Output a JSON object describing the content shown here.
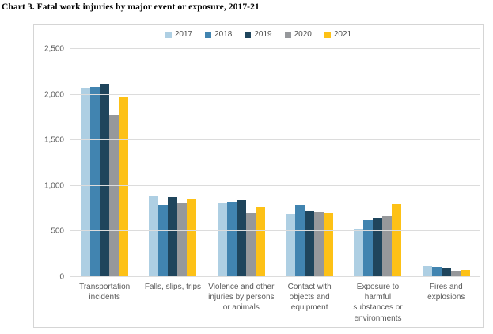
{
  "title": "Chart 3. Fatal work injuries by major event or exposure, 2017-21",
  "colors": {
    "frame_border": "#d5d5d5",
    "gridline": "#dcdcdc",
    "axis_text": "#595959",
    "legend_text": "#4d4d4d",
    "background": "#ffffff"
  },
  "chart_data": {
    "type": "bar",
    "title": "Chart 3. Fatal work injuries by major event or exposure, 2017-21",
    "categories": [
      "Transportation incidents",
      "Falls, slips, trips",
      "Violence and other injuries by persons or animals",
      "Contact with objects and equipment",
      "Exposure to harmful substances or environments",
      "Fires and explosions"
    ],
    "categories_wrapped": [
      "Transportation\nincidents",
      "Falls, slips, trips",
      "Violence and other\ninjuries by persons\nor animals",
      "Contact with\nobjects and\nequipment",
      "Exposure to\nharmful\nsubstances or\nenvironments",
      "Fires and\nexplosions"
    ],
    "series": [
      {
        "name": "2017",
        "color": "#aecfe3",
        "values": [
          2077,
          887,
          807,
          695,
          531,
          123
        ]
      },
      {
        "name": "2018",
        "color": "#4184b0",
        "values": [
          2080,
          791,
          828,
          786,
          621,
          115
        ]
      },
      {
        "name": "2019",
        "color": "#1f455c",
        "values": [
          2122,
          880,
          841,
          732,
          642,
          99
        ]
      },
      {
        "name": "2020",
        "color": "#96989b",
        "values": [
          1778,
          805,
          705,
          716,
          672,
          71
        ]
      },
      {
        "name": "2021",
        "color": "#fdc116",
        "values": [
          1982,
          850,
          761,
          705,
          798,
          76
        ]
      }
    ],
    "xlabel": "",
    "ylabel": "",
    "ylim": [
      0,
      2500
    ],
    "yticks": [
      {
        "label": "0",
        "value": 0
      },
      {
        "label": "500",
        "value": 500
      },
      {
        "label": "1,000",
        "value": 1000
      },
      {
        "label": "1,500",
        "value": 1500
      },
      {
        "label": "2,000",
        "value": 2000
      },
      {
        "label": "2,500",
        "value": 2500
      }
    ],
    "grid": true,
    "legend_position": "top"
  }
}
